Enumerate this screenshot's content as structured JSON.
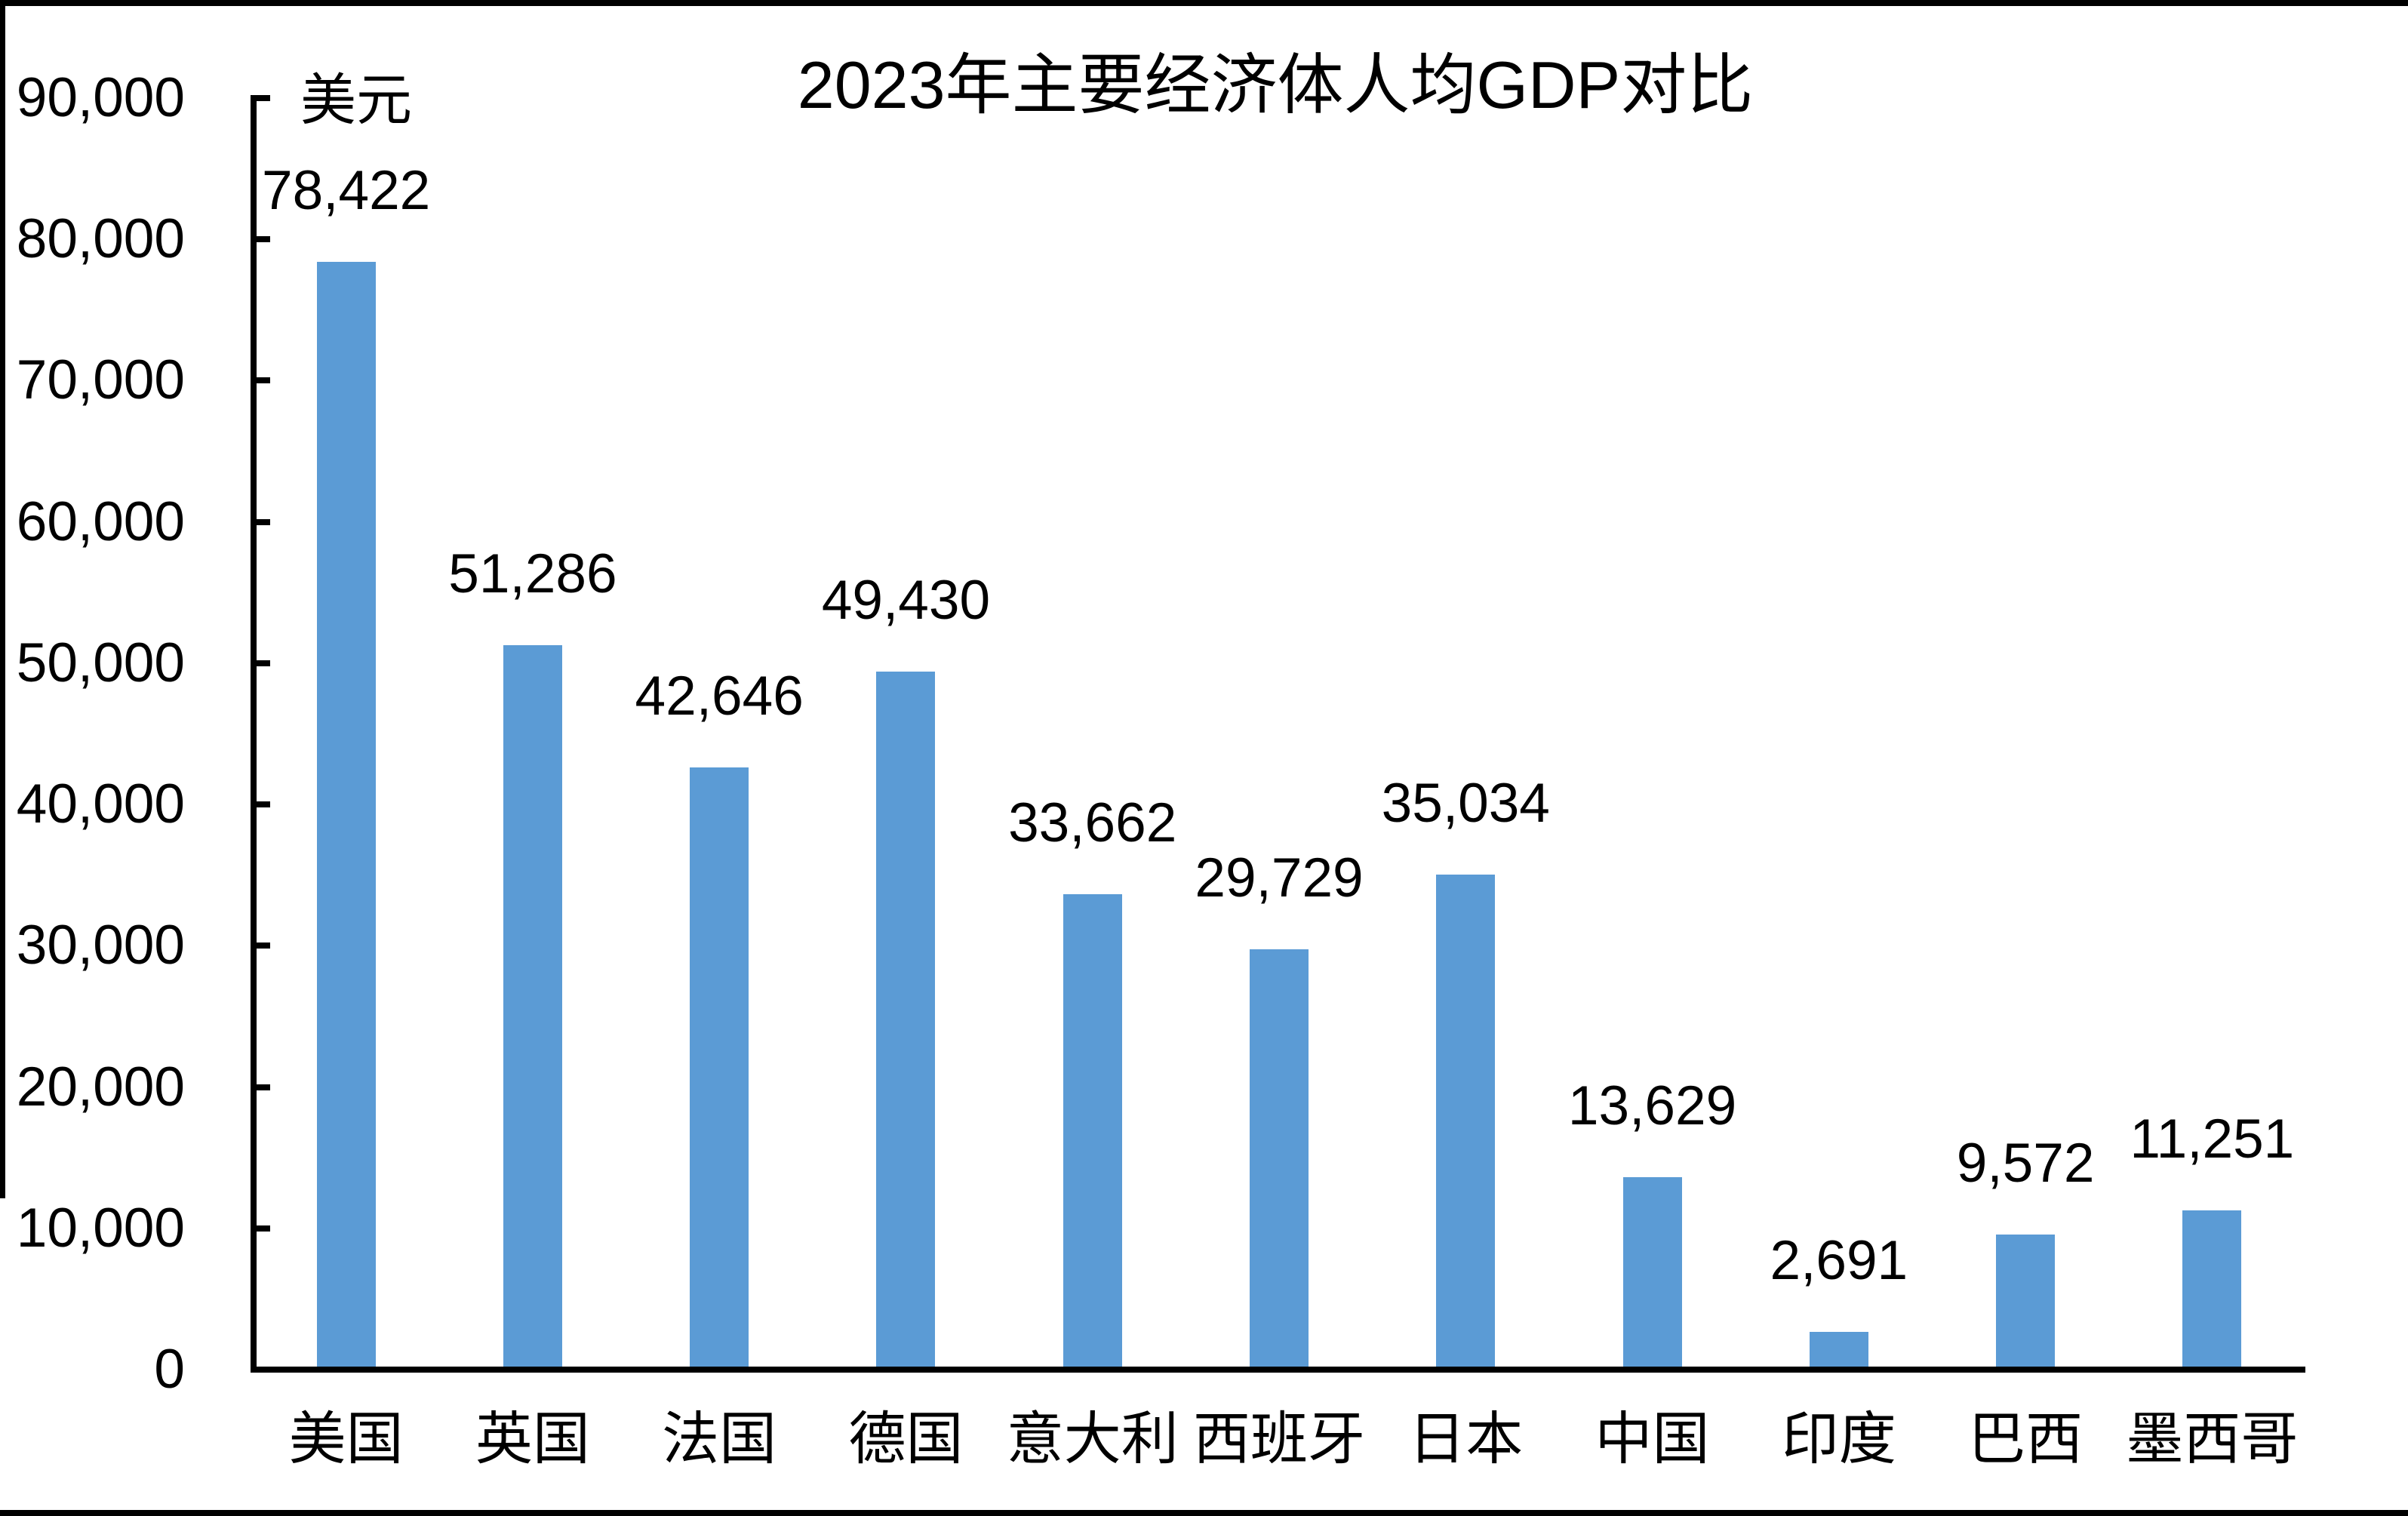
{
  "chart_data": {
    "type": "bar",
    "title": "2023年主要经济体人均GDP对比",
    "unit_label": "美元",
    "categories": [
      "美国",
      "英国",
      "法国",
      "德国",
      "意大利",
      "西班牙",
      "日本",
      "中国",
      "印度",
      "巴西",
      "墨西哥"
    ],
    "values": [
      78422,
      51286,
      42646,
      49430,
      33662,
      29729,
      35034,
      13629,
      2691,
      9572,
      11251
    ],
    "data_labels": [
      "78,422",
      "51,286",
      "42,646",
      "49,430",
      "33,662",
      "29,729",
      "35,034",
      "13,629",
      "2,691",
      "9,572",
      "11,251"
    ],
    "xlabel": "",
    "ylabel": "美元",
    "ylim": [
      0,
      90000
    ],
    "ytick_step": 10000,
    "ytick_labels": [
      "0",
      "10,000",
      "20,000",
      "30,000",
      "40,000",
      "50,000",
      "60,000",
      "70,000",
      "80,000",
      "90,000"
    ],
    "grid": false,
    "legend": "none",
    "bar_color": "#5B9BD5",
    "axis_color": "#000000",
    "text_color": "#000000",
    "background_color": "#FFFFFF"
  }
}
